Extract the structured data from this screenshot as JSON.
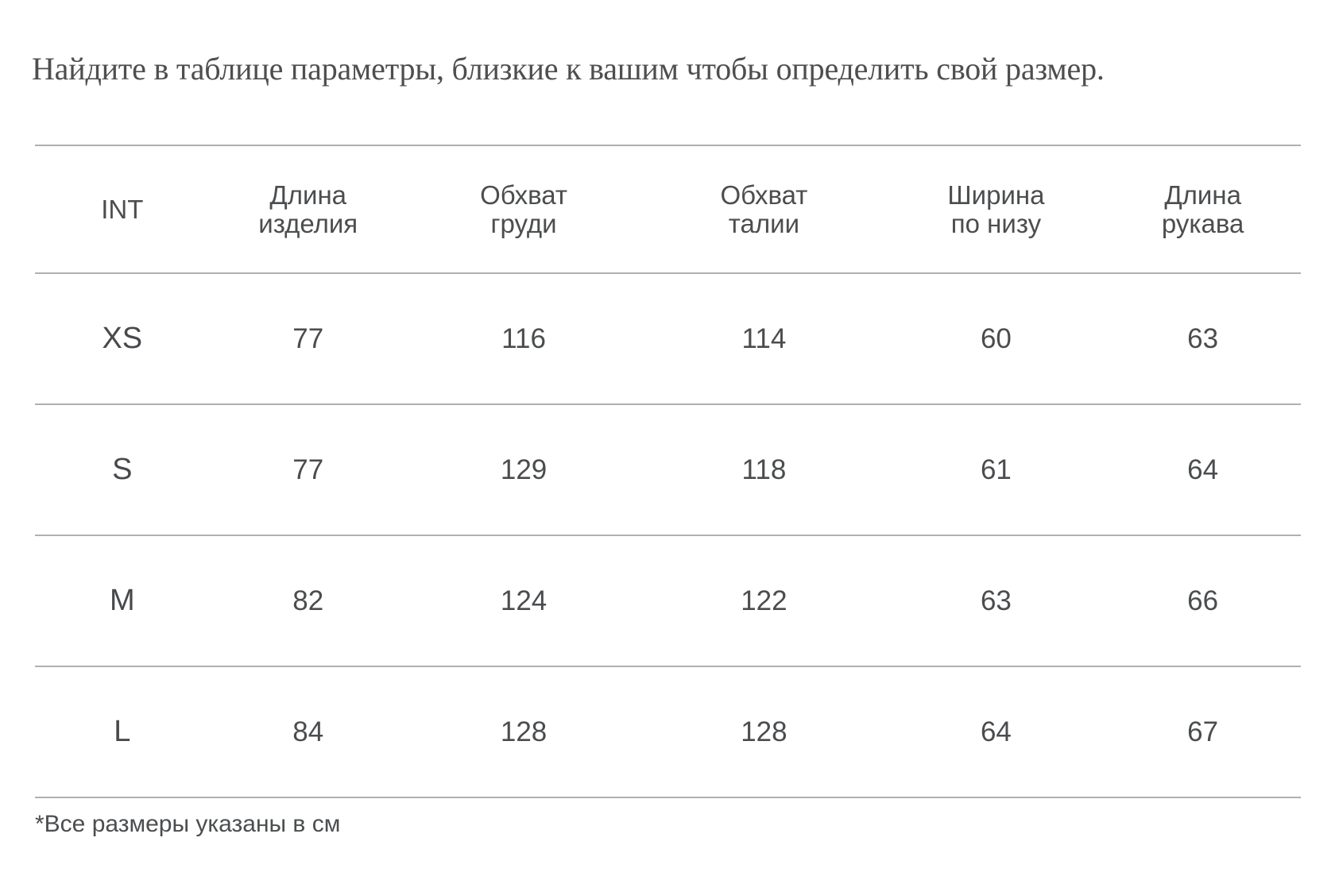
{
  "page": {
    "title": "Найдите в таблице параметры, близкие к вашим чтобы определить свой размер.",
    "footnote": "*Все размеры указаны в см"
  },
  "size_table": {
    "columns": [
      {
        "line1": "INT",
        "line2": ""
      },
      {
        "line1": "Длина",
        "line2": "изделия"
      },
      {
        "line1": "Обхват",
        "line2": "груди"
      },
      {
        "line1": "Обхват",
        "line2": "талии"
      },
      {
        "line1": "Ширина",
        "line2": "по низу"
      },
      {
        "line1": "Длина",
        "line2": "рукава"
      }
    ],
    "rows": [
      {
        "size": "XS",
        "values": [
          "77",
          "116",
          "114",
          "60",
          "63"
        ]
      },
      {
        "size": "S",
        "values": [
          "77",
          "129",
          "118",
          "61",
          "64"
        ]
      },
      {
        "size": "M",
        "values": [
          "82",
          "124",
          "122",
          "63",
          "66"
        ]
      },
      {
        "size": "L",
        "values": [
          "84",
          "128",
          "128",
          "64",
          "67"
        ]
      }
    ],
    "unit_note": "см"
  },
  "colors": {
    "background": "#ffffff",
    "title_text": "#4e4e4e",
    "table_text": "#4a4c4e",
    "rule": "#b2afad"
  }
}
